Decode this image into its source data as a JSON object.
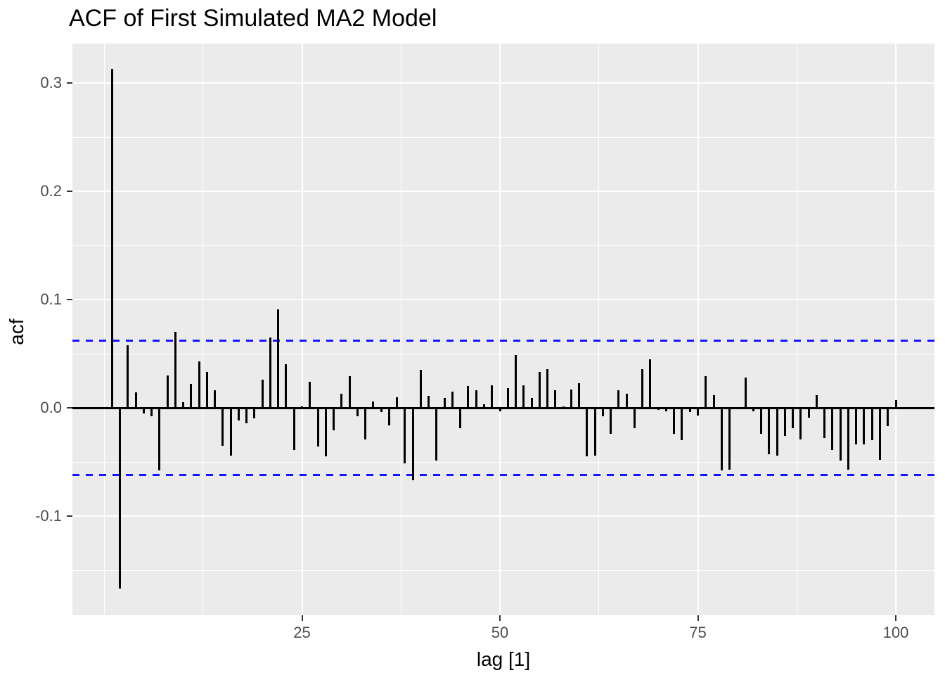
{
  "figure": {
    "title": "ACF of First Simulated MA2 Model"
  },
  "chart_data": {
    "type": "bar",
    "subtype": "acf-spike-plot",
    "title": "ACF of First Simulated MA2 Model",
    "xlabel": "lag [1]",
    "ylabel": "acf",
    "x_ticks": [
      25,
      50,
      75,
      100
    ],
    "y_ticks": [
      0.3,
      0.2,
      0.1,
      0.0,
      -0.1
    ],
    "y_tick_labels": [
      "0.3",
      "0.2",
      "0.1",
      "0.0",
      "-0.1"
    ],
    "xlim": [
      -4,
      105
    ],
    "ylim": [
      -0.192,
      0.336
    ],
    "grid": true,
    "legend": false,
    "lag_start": 1,
    "values": [
      0.313,
      -0.167,
      0.058,
      0.014,
      -0.005,
      -0.008,
      -0.058,
      0.03,
      0.07,
      0.005,
      0.022,
      0.043,
      0.033,
      0.016,
      -0.035,
      -0.044,
      -0.012,
      -0.014,
      -0.01,
      0.026,
      0.065,
      0.091,
      0.04,
      -0.039,
      0.001,
      0.024,
      -0.036,
      -0.045,
      -0.021,
      0.013,
      0.029,
      -0.008,
      -0.029,
      0.006,
      -0.004,
      -0.016,
      0.01,
      -0.051,
      -0.067,
      0.035,
      0.011,
      -0.049,
      0.009,
      0.015,
      -0.019,
      0.02,
      0.016,
      0.003,
      0.021,
      -0.003,
      0.018,
      0.049,
      0.021,
      0.009,
      0.033,
      0.036,
      0.016,
      0.001,
      0.017,
      0.023,
      -0.045,
      -0.044,
      -0.008,
      -0.024,
      0.016,
      0.013,
      -0.019,
      0.036,
      0.045,
      -0.002,
      -0.003,
      -0.024,
      -0.03,
      -0.004,
      -0.007,
      0.029,
      0.012,
      -0.058,
      -0.057,
      0.0,
      0.028,
      -0.003,
      -0.024,
      -0.043,
      -0.044,
      -0.026,
      -0.019,
      -0.029,
      -0.009,
      0.012,
      -0.028,
      -0.039,
      -0.049,
      -0.057,
      -0.034,
      -0.034,
      -0.03,
      -0.048,
      -0.017,
      0.007
    ],
    "confidence_bands": {
      "upper": 0.062,
      "lower": -0.062,
      "line_style": "dashed",
      "color": "#0000FF"
    },
    "colors": {
      "panel_background": "#EBEBEB",
      "gridline": "#FFFFFF",
      "bar": "#000000",
      "zero_line": "#000000",
      "band": "#0000FF",
      "tick_text": "#4D4D4D",
      "title_text": "#000000"
    }
  }
}
